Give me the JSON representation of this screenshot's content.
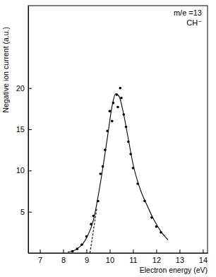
{
  "chart_data": {
    "type": "line",
    "x_label": "Electron energy (eV)",
    "y_label": "Negative ion current (a.u.)",
    "annotations": [
      "m/e =13",
      "CH⁻"
    ],
    "xlim": [
      6.5,
      14.2
    ],
    "xticks": [
      7,
      8,
      9,
      10,
      11,
      12,
      13,
      14
    ],
    "ylim": [
      0,
      30
    ],
    "yticks": [
      5,
      10,
      15,
      20
    ],
    "grid": false,
    "series": [
      {
        "type": "scatter",
        "color": "#000000",
        "marker": "circle",
        "x": [
          8.4,
          8.6,
          8.8,
          9.0,
          9.2,
          9.3,
          9.5,
          9.6,
          9.7,
          9.8,
          9.9,
          10.0,
          10.1,
          10.15,
          10.3,
          10.35,
          10.45,
          10.5,
          10.6,
          10.7,
          10.8,
          10.9,
          11.0,
          11.2,
          11.5,
          11.8,
          12.0,
          12.2
        ],
        "values": [
          0.2,
          0.5,
          1.0,
          2.0,
          3.5,
          4.5,
          6.3,
          9.6,
          10.5,
          12.5,
          14.8,
          17.2,
          16.0,
          18.2,
          19.2,
          17.7,
          20.0,
          18.8,
          16.8,
          15.3,
          13.5,
          12.0,
          10.3,
          8.4,
          6.3,
          4.3,
          3.2,
          2.5
        ]
      },
      {
        "type": "line",
        "color": "#000000",
        "line_style": "solid",
        "x": [
          8.2,
          8.6,
          9.0,
          9.3,
          9.6,
          9.9,
          10.1,
          10.25,
          10.4,
          10.6,
          10.8,
          11.0,
          11.3,
          11.6,
          11.9,
          12.2,
          12.5
        ],
        "values": [
          0.1,
          0.5,
          1.8,
          4.0,
          8.5,
          14.0,
          17.8,
          19.3,
          19.0,
          16.8,
          13.8,
          10.8,
          7.8,
          5.8,
          4.0,
          2.6,
          1.6
        ]
      },
      {
        "type": "line",
        "color": "#000000",
        "line_style": "dashed",
        "x": [
          9.15,
          9.45
        ],
        "values": [
          0,
          5.5
        ]
      }
    ]
  }
}
